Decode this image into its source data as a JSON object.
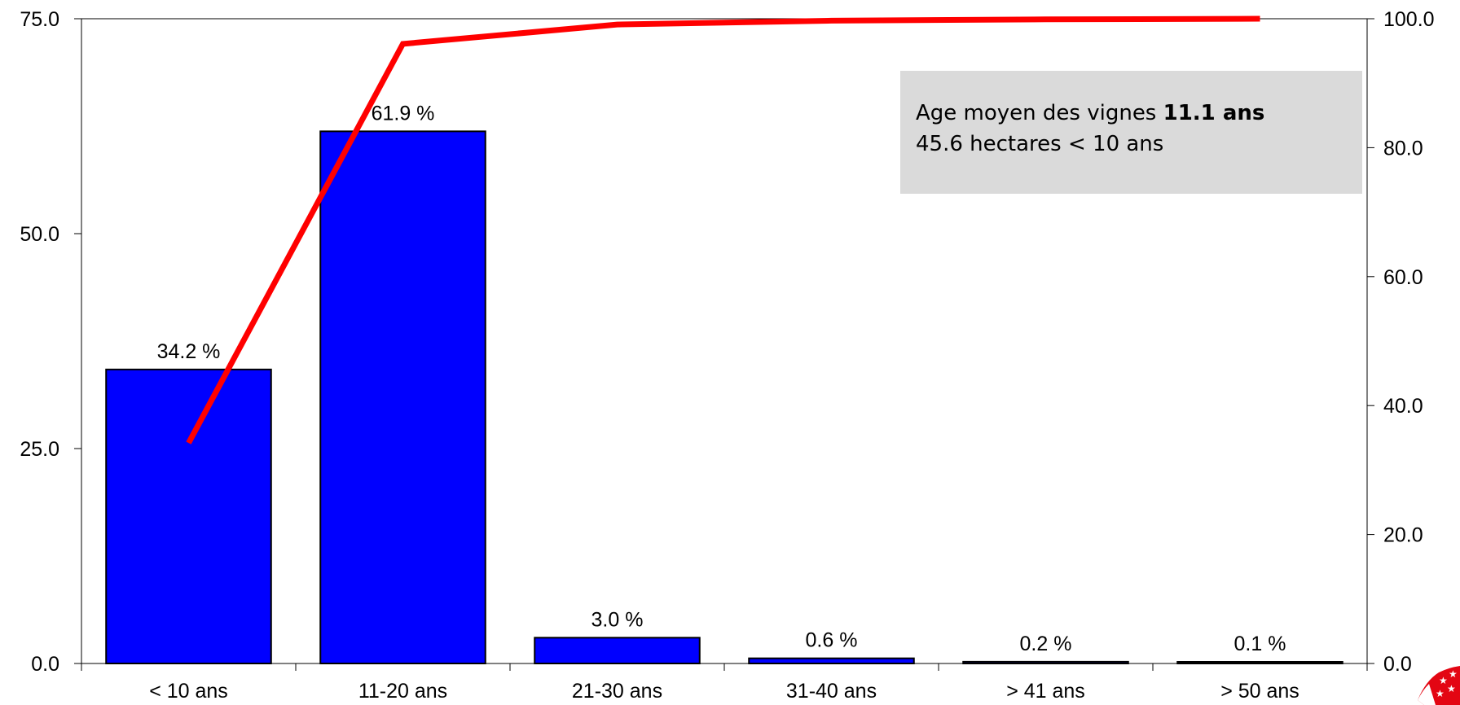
{
  "chart_data": {
    "type": "bar",
    "categories": [
      "< 10 ans",
      "11-20 ans",
      "21-30 ans",
      "31-40 ans",
      "> 41 ans",
      "> 50 ans"
    ],
    "series": [
      {
        "type": "bar",
        "values": [
          34.2,
          61.9,
          3.0,
          0.6,
          0.2,
          0.1
        ],
        "labels": [
          "34.2 %",
          "61.9 %",
          "3.0 %",
          "0.6 %",
          "0.2 %",
          "0.1 %"
        ],
        "color": "#0000ff"
      },
      {
        "type": "line",
        "axis": "right",
        "values": [
          34.2,
          96.1,
          99.1,
          99.7,
          99.9,
          100.0
        ],
        "color": "#ff0000"
      }
    ],
    "y_left": {
      "ylim": [
        0,
        75
      ],
      "ticks": [
        "0.0",
        "25.0",
        "50.0",
        "75.0"
      ]
    },
    "y_right": {
      "ylim": [
        0,
        100
      ],
      "ticks": [
        "0.0",
        "20.0",
        "40.0",
        "60.0",
        "80.0",
        "100.0"
      ]
    },
    "grid": false,
    "annotation": {
      "line1_prefix": "Age moyen des vignes ",
      "line1_bold": "11.1 ans",
      "line2": "45.6 hectares < 10 ans"
    }
  },
  "colors": {
    "bar_fill": "#0000ff",
    "line": "#ff0000",
    "annotation_bg": "#dadada",
    "logo": "#e30613"
  },
  "logo_icon": "flag-stars-icon"
}
